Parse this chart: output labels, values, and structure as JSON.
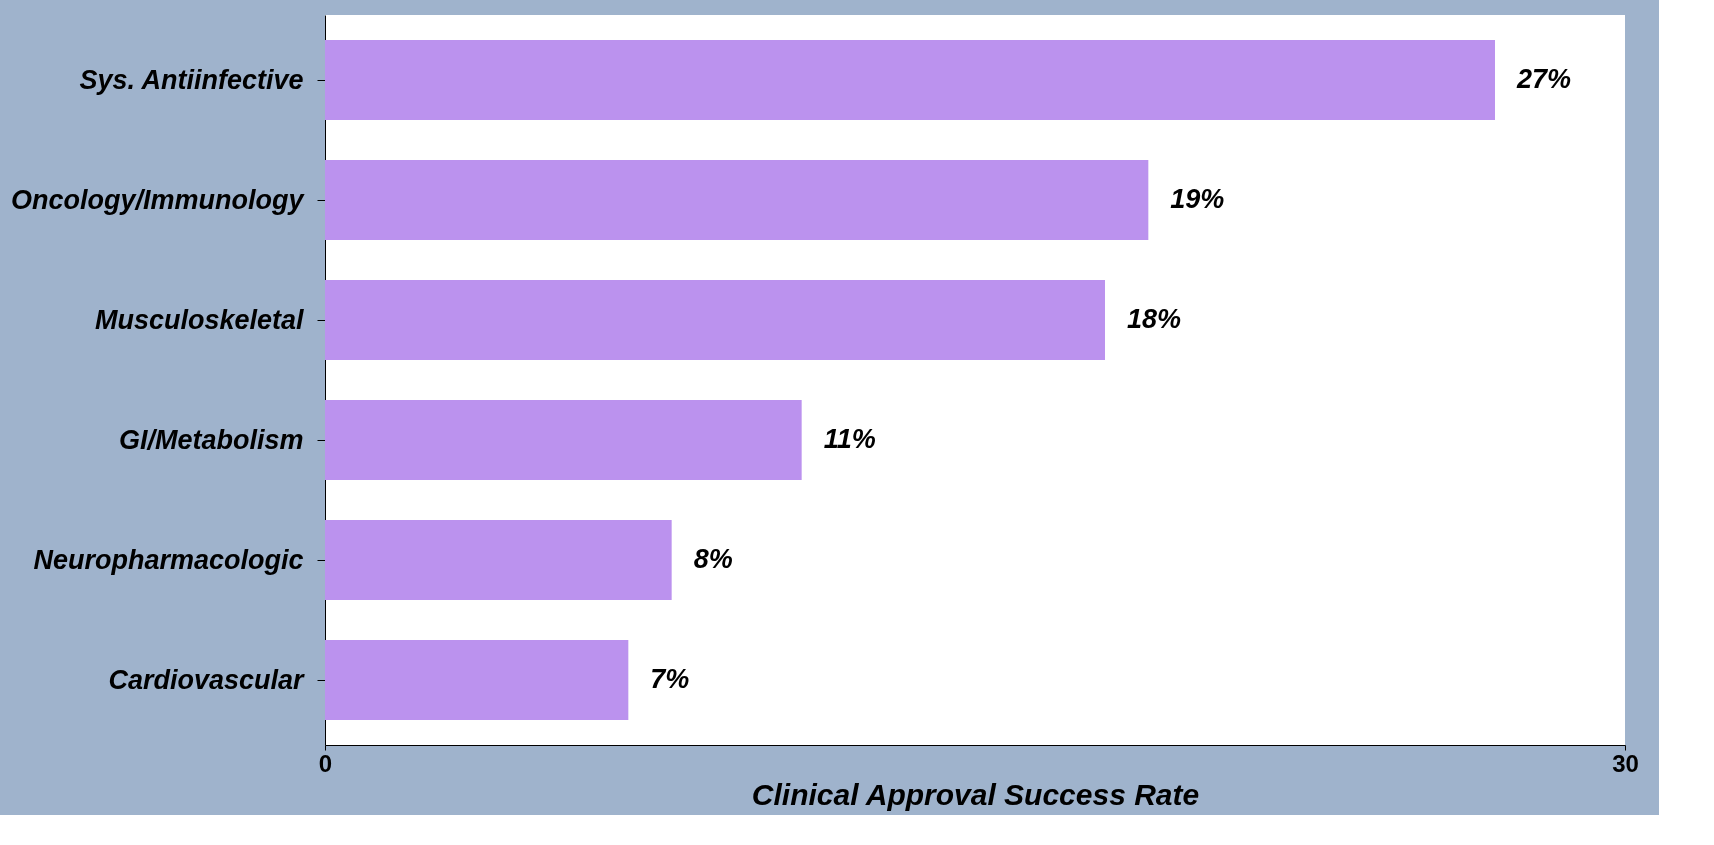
{
  "chart_data": {
    "type": "bar",
    "orientation": "horizontal",
    "xlabel": "Clinical Approval Success Rate",
    "categories": [
      "Sys. Antiinfective",
      "Oncology/Immunology",
      "Musculoskeletal",
      "GI/Metabolism",
      "Neuropharmacologic",
      "Cardiovascular"
    ],
    "values": [
      27,
      19,
      18,
      11,
      8,
      7
    ],
    "value_labels": [
      "27%",
      "19%",
      "18%",
      "11%",
      "8%",
      "7%"
    ],
    "color": "#bb92ee",
    "xlim": [
      0,
      30
    ],
    "xticks": [
      0,
      30
    ],
    "grid": false
  }
}
